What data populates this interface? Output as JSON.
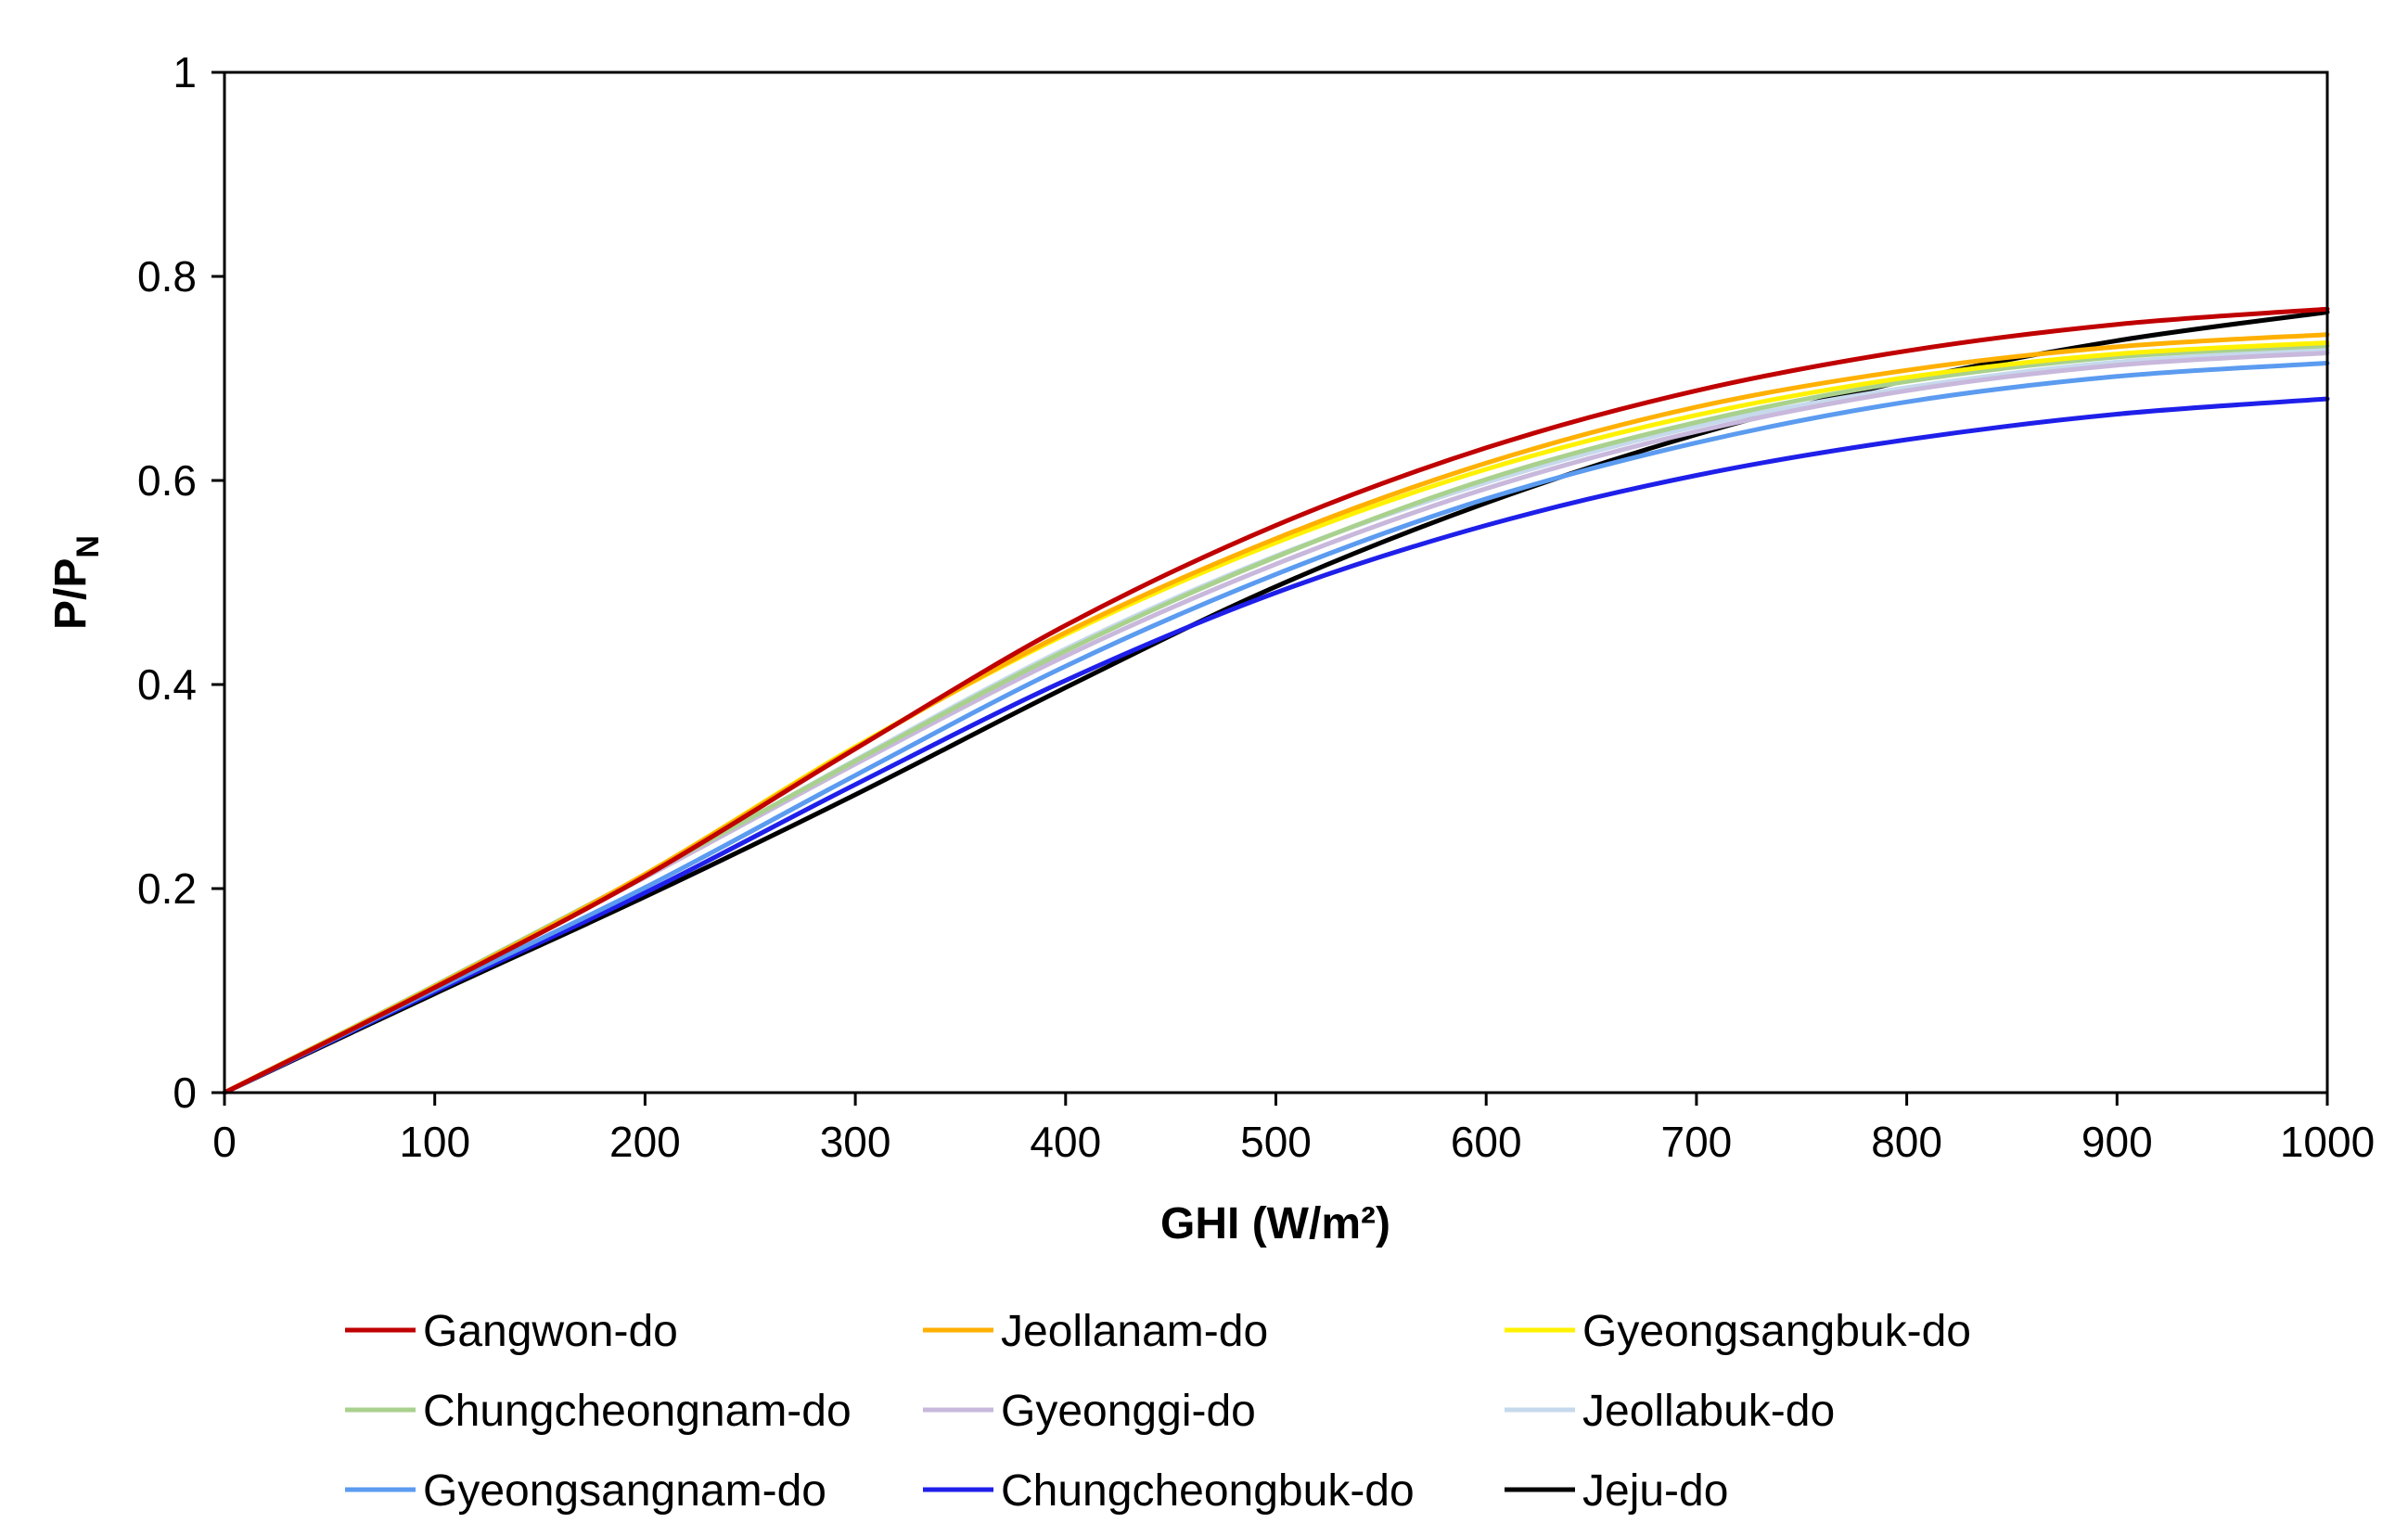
{
  "chart_data": {
    "type": "line",
    "title": "",
    "xlabel": "GHI (W/m²)",
    "ylabel_main": "P/P",
    "ylabel_sub": "N",
    "xlim": [
      0,
      1000
    ],
    "ylim": [
      0,
      1
    ],
    "x_ticks": [
      0,
      100,
      200,
      300,
      400,
      500,
      600,
      700,
      800,
      900,
      1000
    ],
    "y_ticks": [
      0,
      0.2,
      0.4,
      0.6,
      0.8,
      1
    ],
    "x_tick_labels": [
      "0",
      "100",
      "200",
      "300",
      "400",
      "500",
      "600",
      "700",
      "800",
      "900",
      "1000"
    ],
    "y_tick_labels": [
      "0",
      "0.2",
      "0.4",
      "0.6",
      "0.8",
      "1"
    ],
    "grid": false,
    "legend_position": "bottom",
    "x": [
      0,
      100,
      200,
      300,
      400,
      500,
      600,
      700,
      800,
      900,
      1000
    ],
    "series": [
      {
        "name": "Gangwon-do",
        "color": "#C00000",
        "values": [
          0,
          0.103,
          0.212,
          0.337,
          0.458,
          0.556,
          0.632,
          0.688,
          0.727,
          0.753,
          0.768
        ]
      },
      {
        "name": "Jeollanam-do",
        "color": "#FFB000",
        "values": [
          0,
          0.104,
          0.214,
          0.338,
          0.451,
          0.543,
          0.617,
          0.672,
          0.708,
          0.731,
          0.743
        ]
      },
      {
        "name": "Gyeongsangbuk-do",
        "color": "#FFF200",
        "values": [
          0,
          0.104,
          0.214,
          0.339,
          0.449,
          0.539,
          0.611,
          0.664,
          0.701,
          0.724,
          0.735
        ]
      },
      {
        "name": "Chungcheongnam-do",
        "color": "#A9D18E",
        "values": [
          0,
          0.105,
          0.213,
          0.325,
          0.433,
          0.525,
          0.601,
          0.657,
          0.697,
          0.721,
          0.732
        ]
      },
      {
        "name": "Gyeonggi-do",
        "color": "#C8B8DC",
        "values": [
          0,
          0.104,
          0.211,
          0.322,
          0.428,
          0.518,
          0.592,
          0.648,
          0.688,
          0.713,
          0.725
        ]
      },
      {
        "name": "Jeollabuk-do",
        "color": "#C6D9EC",
        "values": [
          0,
          0.104,
          0.211,
          0.326,
          0.435,
          0.526,
          0.598,
          0.653,
          0.691,
          0.716,
          0.728
        ]
      },
      {
        "name": "Gyeongsangnam-do",
        "color": "#5B9BF0",
        "values": [
          0,
          0.101,
          0.201,
          0.311,
          0.418,
          0.508,
          0.582,
          0.637,
          0.677,
          0.702,
          0.715
        ]
      },
      {
        "name": "Chungcheongbuk-do",
        "color": "#1F1FEA",
        "values": [
          0,
          0.099,
          0.196,
          0.302,
          0.404,
          0.49,
          0.556,
          0.605,
          0.64,
          0.665,
          0.68
        ]
      },
      {
        "name": "Jeju-do",
        "color": "#000000",
        "values": [
          0,
          0.097,
          0.192,
          0.292,
          0.397,
          0.496,
          0.578,
          0.645,
          0.698,
          0.737,
          0.765
        ]
      }
    ]
  }
}
